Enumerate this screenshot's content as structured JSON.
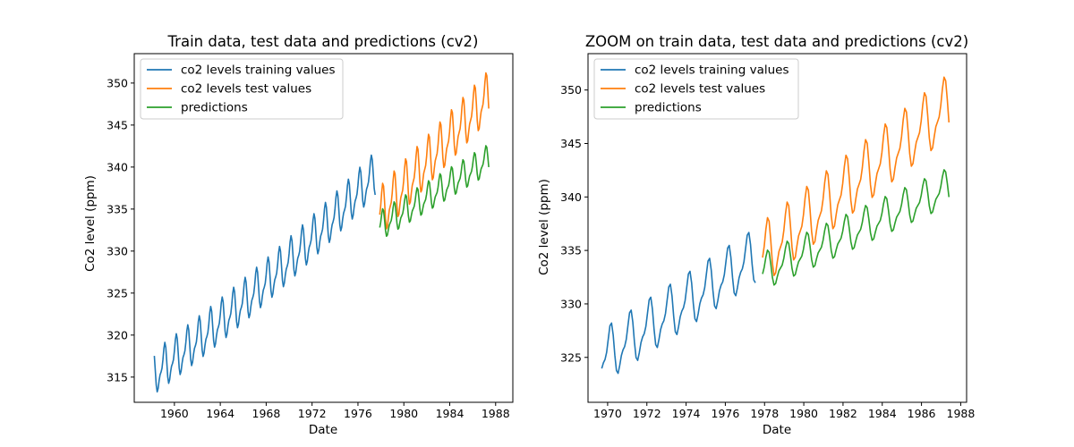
{
  "colors": {
    "train": "#1f77b4",
    "test": "#ff7f0e",
    "predictions": "#2ca02c",
    "axes": "#000000",
    "legend_border": "#cccccc"
  },
  "chart_data": [
    {
      "type": "line",
      "title": "Train data, test data and predictions (cv2)",
      "xlabel": "Date",
      "ylabel": "Co2 level (ppm)",
      "xlim": [
        1956.5,
        1989.5
      ],
      "ylim": [
        312.0,
        353.5
      ],
      "xticks": [
        1960,
        1964,
        1968,
        1972,
        1976,
        1980,
        1984,
        1988
      ],
      "xtick_labels": [
        "1960",
        "1964",
        "1968",
        "1972",
        "1976",
        "1980",
        "1984",
        "1988"
      ],
      "yticks": [
        315,
        320,
        325,
        330,
        335,
        340,
        345,
        350
      ],
      "ytick_labels": [
        "315",
        "320",
        "325",
        "330",
        "335",
        "340",
        "345",
        "350"
      ],
      "grid": false,
      "legend_position": "upper-left",
      "series": [
        {
          "name": "co2 levels training values",
          "color_key": "train",
          "x_start": 1958.25,
          "x_end": 1977.5,
          "trend_start": 315.4,
          "slope": 1.0,
          "curvature": 0.012,
          "amplitude": 2.6
        },
        {
          "name": "co2 levels test values",
          "color_key": "test",
          "x_start": 1977.9,
          "x_end": 1987.4,
          "trend_start": 334.5,
          "slope": 1.46,
          "curvature": 0.0,
          "amplitude": 3.0
        },
        {
          "name": "predictions",
          "color_key": "predictions",
          "x_start": 1977.9,
          "x_end": 1987.4,
          "trend_start": 332.9,
          "slope": 0.835,
          "curvature": 0.0,
          "amplitude": 1.8
        }
      ]
    },
    {
      "type": "line",
      "title": "ZOOM on train data, test data and predictions (cv2)",
      "xlabel": "Date",
      "ylabel": "Co2 level (ppm)",
      "xlim": [
        1969.0,
        1988.3
      ],
      "ylim": [
        320.8,
        353.4
      ],
      "xticks": [
        1970,
        1972,
        1974,
        1976,
        1978,
        1980,
        1982,
        1984,
        1986,
        1988
      ],
      "xtick_labels": [
        "1970",
        "1972",
        "1974",
        "1976",
        "1978",
        "1980",
        "1982",
        "1984",
        "1986",
        "1988"
      ],
      "yticks": [
        325,
        330,
        335,
        340,
        345,
        350
      ],
      "ytick_labels": [
        "325",
        "330",
        "335",
        "340",
        "345",
        "350"
      ],
      "grid": false,
      "legend_position": "upper-left",
      "series": [
        {
          "name": "co2 levels training values",
          "color_key": "train",
          "x_start": 1969.7,
          "x_end": 1977.5,
          "trend_start": 324.9,
          "slope": 1.21,
          "curvature": 0.0,
          "amplitude": 2.6
        },
        {
          "name": "co2 levels test values",
          "color_key": "test",
          "x_start": 1977.9,
          "x_end": 1987.4,
          "trend_start": 334.5,
          "slope": 1.46,
          "curvature": 0.0,
          "amplitude": 3.0
        },
        {
          "name": "predictions",
          "color_key": "predictions",
          "x_start": 1977.9,
          "x_end": 1987.4,
          "trend_start": 332.9,
          "slope": 0.835,
          "curvature": 0.0,
          "amplitude": 1.8
        }
      ]
    }
  ]
}
